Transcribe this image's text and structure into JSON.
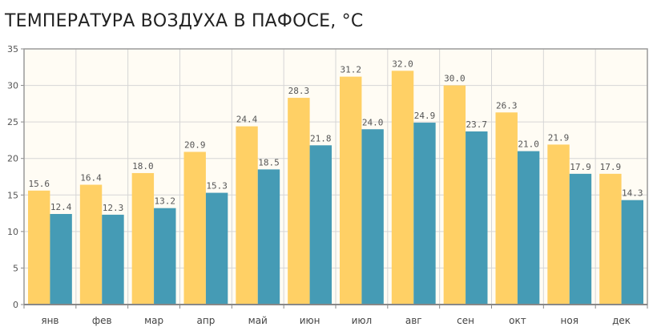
{
  "chart_data": {
    "type": "bar",
    "title": "ТЕМПЕРАТУРА ВОЗДУХА В ПАФОСЕ, °C",
    "xlabel": "",
    "ylabel": "",
    "ylim": [
      0,
      35
    ],
    "yticks": [
      0,
      5,
      10,
      15,
      20,
      25,
      30,
      35
    ],
    "grid": true,
    "categories": [
      "янв",
      "фев",
      "мар",
      "апр",
      "май",
      "июн",
      "июл",
      "авг",
      "сен",
      "окт",
      "ноя",
      "дек"
    ],
    "series": [
      {
        "name": "series_1",
        "color": "#FFD065",
        "values": [
          15.6,
          16.4,
          18.0,
          20.9,
          24.4,
          28.3,
          31.2,
          32.0,
          30.0,
          26.3,
          21.9,
          17.9
        ]
      },
      {
        "name": "series_2",
        "color": "#459BB5",
        "values": [
          12.4,
          12.3,
          13.2,
          15.3,
          18.5,
          21.8,
          24.0,
          24.9,
          23.7,
          21.0,
          17.9,
          14.3
        ]
      }
    ]
  }
}
